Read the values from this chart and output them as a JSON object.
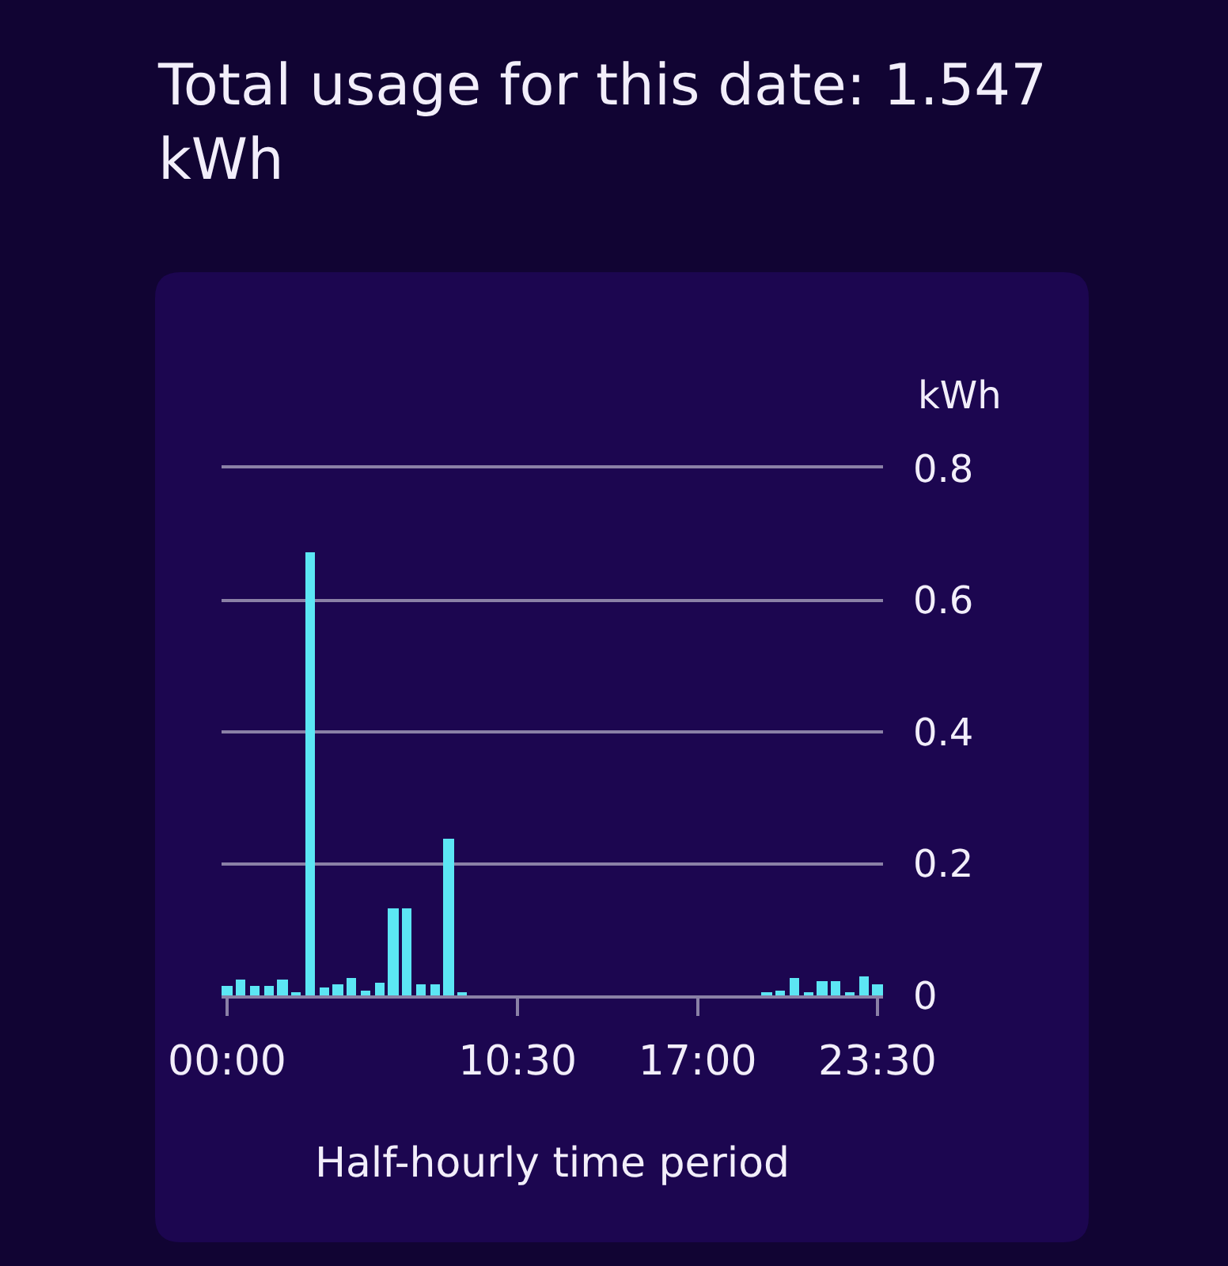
{
  "chart_data": {
    "type": "bar",
    "title": "Total usage for this date: 1.547 kWh",
    "xlabel": "Half-hourly time period",
    "ylabel": "kWh",
    "x": [
      0,
      0.5,
      1,
      1.5,
      2,
      2.5,
      3,
      3.5,
      4,
      4.5,
      5,
      5.5,
      6,
      6.5,
      7,
      7.5,
      8,
      8.5,
      9,
      9.5,
      10,
      10.5,
      11,
      11.5,
      12,
      12.5,
      13,
      13.5,
      14,
      14.5,
      15,
      15.5,
      16,
      16.5,
      17,
      17.5,
      18,
      18.5,
      19,
      19.5,
      20,
      20.5,
      21,
      21.5,
      22,
      22.5,
      23,
      23.5
    ],
    "values": [
      0.015,
      0.024,
      0.014,
      0.014,
      0.024,
      0.004,
      0.673,
      0.012,
      0.016,
      0.026,
      0.008,
      0.02,
      0.132,
      0.132,
      0.016,
      0.016,
      0.238,
      0.005,
      0,
      0,
      0,
      0,
      0,
      0,
      0,
      0,
      0,
      0,
      0,
      0,
      0,
      0,
      0,
      0,
      0,
      0,
      0,
      0,
      0,
      0.006,
      0.007,
      0.026,
      0.004,
      0.021,
      0.021,
      0.006,
      0.029,
      0.016
    ],
    "color": "#5ce6f4",
    "xlim": [
      -0.2,
      23.7
    ],
    "xticks": [
      {
        "value": 0,
        "label": "00:00"
      },
      {
        "value": 10.5,
        "label": "10:30"
      },
      {
        "value": 17,
        "label": "17:00"
      },
      {
        "value": 23.5,
        "label": "23:30"
      }
    ],
    "ylim": [
      0,
      0.8
    ],
    "yticks": [
      0,
      0.2,
      0.4,
      0.6,
      0.8
    ],
    "grid": "y"
  }
}
